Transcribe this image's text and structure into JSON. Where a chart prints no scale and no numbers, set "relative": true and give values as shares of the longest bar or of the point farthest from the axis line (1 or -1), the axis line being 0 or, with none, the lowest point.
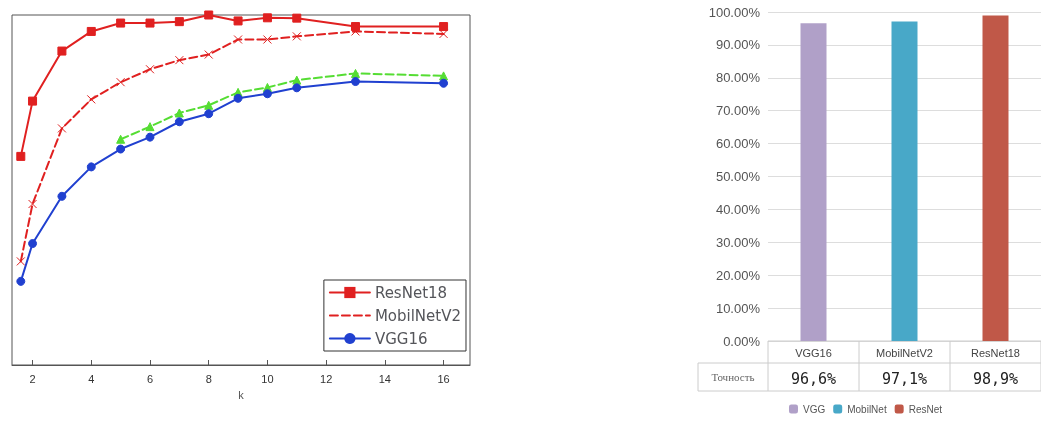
{
  "chart_data": [
    {
      "type": "line",
      "relative": true,
      "xlabel": "k",
      "xlim": [
        1.3,
        16.9
      ],
      "xticks": [
        2,
        4,
        6,
        8,
        10,
        12,
        14,
        16
      ],
      "tick_labels": "x",
      "grid": false,
      "legend": "bottom right",
      "series": [
        {
          "name": "ResNet18",
          "color": "#e02020",
          "marker": "square",
          "line_style": "solid",
          "x": [
            1.6,
            2,
            3,
            4,
            5,
            6,
            7,
            8,
            9,
            10,
            11,
            13,
            16
          ],
          "values": [
            0.596,
            0.754,
            0.897,
            0.953,
            0.977,
            0.977,
            0.981,
            1,
            0.983,
            0.992,
            0.991,
            0.967,
            0.967
          ]
        },
        {
          "name": "MobilNetV2",
          "color": "#e02020",
          "marker": "cross",
          "line_style": "dashed",
          "x": [
            1.6,
            2,
            3,
            4,
            5,
            6,
            7,
            8,
            9,
            10,
            11,
            13,
            16
          ],
          "values": [
            0.296,
            0.46,
            0.676,
            0.759,
            0.808,
            0.845,
            0.871,
            0.887,
            0.93,
            0.93,
            0.939,
            0.953,
            0.946
          ]
        },
        {
          "color": "#55dd33",
          "marker": "triangle",
          "line_style": "dashed",
          "x": [
            5,
            6,
            7,
            8,
            9,
            10,
            11,
            13,
            16
          ],
          "values": [
            0.645,
            0.681,
            0.72,
            0.742,
            0.779,
            0.793,
            0.814,
            0.833,
            0.826
          ]
        },
        {
          "name": "VGG16",
          "color": "#2040d0",
          "marker": "circle",
          "line_style": "solid",
          "x": [
            1.6,
            2,
            3,
            4,
            5,
            6,
            7,
            8,
            9,
            10,
            11,
            13,
            16
          ],
          "values": [
            0.239,
            0.347,
            0.482,
            0.566,
            0.617,
            0.651,
            0.695,
            0.718,
            0.762,
            0.775,
            0.792,
            0.81,
            0.805
          ]
        }
      ]
    },
    {
      "type": "bar",
      "categories": [
        "VGG16",
        "MobilNetV2",
        "ResNet18"
      ],
      "ylim": [
        0,
        100
      ],
      "yticks": [
        {
          "value": 0,
          "label": "0.00%"
        },
        {
          "value": 10,
          "label": "10.00%"
        },
        {
          "value": 20,
          "label": "20.00%"
        },
        {
          "value": 30,
          "label": "30.00%"
        },
        {
          "value": 40,
          "label": "40.00%"
        },
        {
          "value": 50,
          "label": "50.00%"
        },
        {
          "value": 60,
          "label": "60.00%"
        },
        {
          "value": 70,
          "label": "70.00%"
        },
        {
          "value": 80,
          "label": "80.00%"
        },
        {
          "value": 90,
          "label": "90.00%"
        },
        {
          "value": 100,
          "label": "100.00%"
        }
      ],
      "grid": "y",
      "legend": "bottom",
      "annotations": [
        "Точность"
      ],
      "series": [
        {
          "name": "VGG",
          "color": "#b0a0c8",
          "values": [
            96.6,
            null,
            null
          ],
          "value_labels": [
            "96,6%",
            null,
            null
          ]
        },
        {
          "name": "MobilNet",
          "color": "#48a8c8",
          "values": [
            null,
            97.1,
            null
          ],
          "value_labels": [
            null,
            "97,1%",
            null
          ]
        },
        {
          "name": "ResNet",
          "color": "#c05848",
          "values": [
            null,
            null,
            98.9
          ],
          "value_labels": [
            null,
            null,
            "98,9%"
          ]
        }
      ]
    }
  ]
}
